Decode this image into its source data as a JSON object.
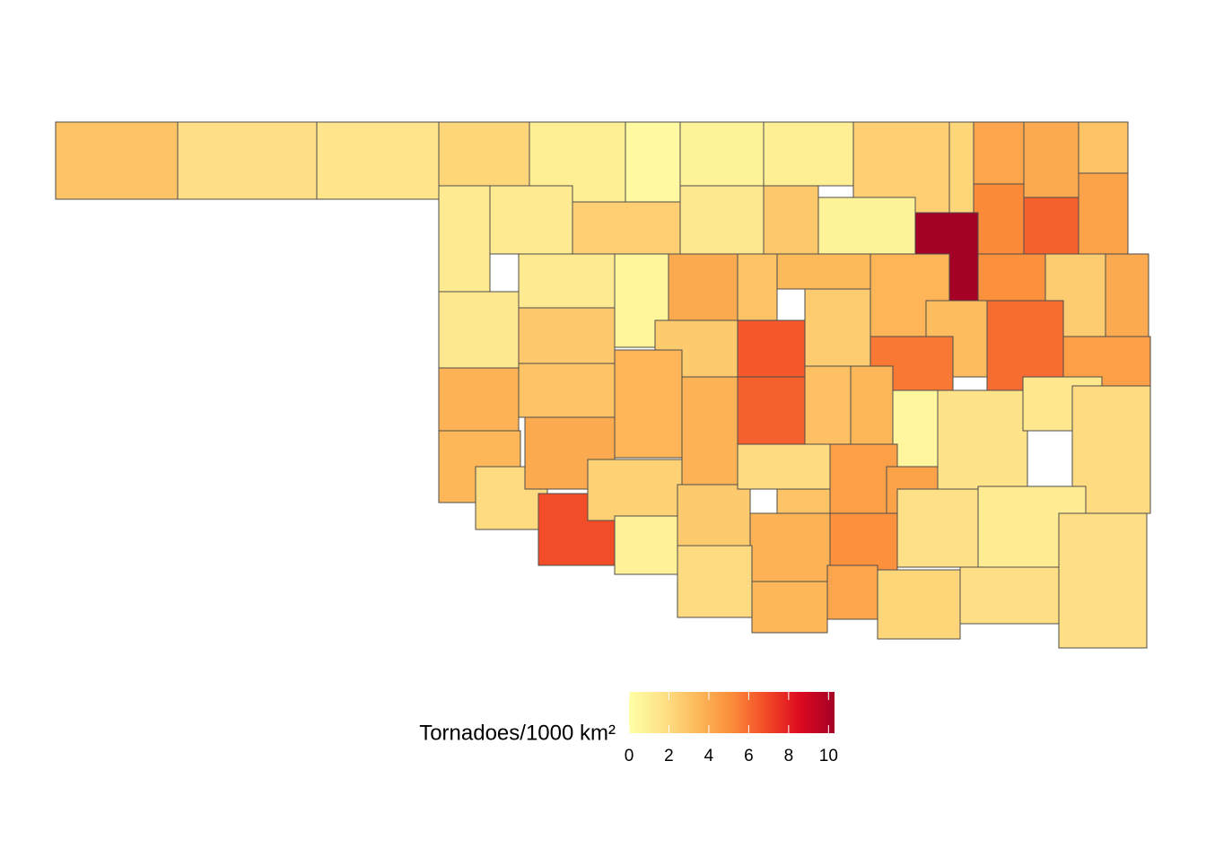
{
  "chart_data": {
    "type": "choropleth",
    "legend_title": "Tornadoes/1000 km²",
    "values": [
      3.0,
      1.8,
      1.5,
      2.2,
      1.0,
      0.3,
      0.7,
      1.0,
      2.5,
      2.2,
      4.2,
      4.0,
      3.0,
      1.2,
      1.2,
      2.5,
      1.3,
      2.8,
      0.7,
      5.2,
      6.3,
      4.3,
      10.3,
      1.3,
      1.2,
      0.6,
      4.0,
      3.0,
      3.4,
      3.6,
      5.0,
      2.6,
      4.0,
      2.6,
      2.8,
      2.7,
      6.5,
      3.3,
      6.0,
      5.7,
      4.4,
      3.7,
      3.0,
      3.6,
      3.7,
      6.3,
      3.1,
      3.5,
      0.5,
      1.6,
      1.4,
      2.0,
      3.5,
      2.0,
      4.0,
      6.8,
      2.4,
      0.8,
      2.7,
      2.0,
      3.0,
      4.4,
      4.3,
      3.7,
      5.0,
      1.7,
      1.1,
      1.8,
      2.0,
      3.5,
      4.2,
      2.2,
      1.8
    ],
    "colorlim": [
      0,
      10.3
    ],
    "colors": [
      "#ffffa6",
      "#fee187",
      "#fdb95a",
      "#fb8d3a",
      "#f24a27",
      "#dc0a20",
      "#a50026"
    ],
    "ticks": [
      0,
      2,
      4,
      6,
      8,
      10
    ]
  }
}
